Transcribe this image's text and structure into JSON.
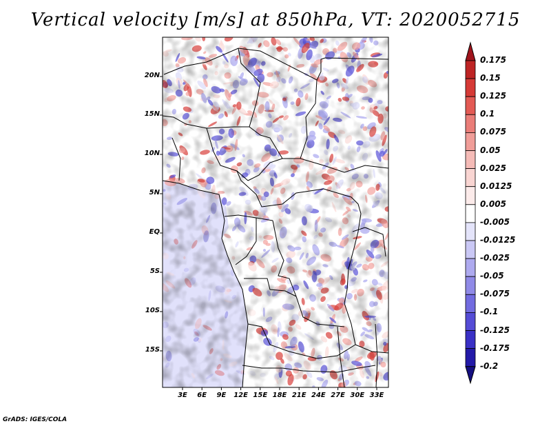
{
  "title": "Vertical velocity [m/s] at 850hPa, VT: 2020052715",
  "credit": "GrADS: IGES/COLA",
  "map": {
    "latitude_labels": [
      "20N",
      "15N",
      "10N",
      "5N",
      "EQ",
      "5S",
      "10S",
      "15S"
    ],
    "longitude_labels": [
      "3E",
      "6E",
      "9E",
      "12E",
      "15E",
      "18E",
      "21E",
      "24E",
      "27E",
      "30E",
      "33E"
    ],
    "field_colors": {
      "strong_up": "#d8403c",
      "up": "#f3a39e",
      "weak_up": "#fbdcd9",
      "neutral": "#ffffff",
      "weak_down": "#dcdcfa",
      "down": "#a9a6ef",
      "strong_down": "#5a52d8"
    }
  },
  "colorbar": {
    "labels": [
      "0.175",
      "0.15",
      "0.125",
      "0.1",
      "0.075",
      "0.05",
      "0.025",
      "0.0125",
      "0.005",
      "-0.005",
      "-0.0125",
      "-0.025",
      "-0.05",
      "-0.075",
      "-0.1",
      "-0.125",
      "-0.175",
      "-0.2"
    ],
    "colors": [
      "#a0141c",
      "#be2424",
      "#d63a36",
      "#e35a54",
      "#ea7d78",
      "#f09d98",
      "#f5bbb7",
      "#f9d5d2",
      "#fcebea",
      "#ffffff",
      "#e4e4fa",
      "#cac8f5",
      "#aeaaef",
      "#908ae7",
      "#726be0",
      "#554cd6",
      "#3a30c6",
      "#231aa8",
      "#150f80"
    ]
  }
}
